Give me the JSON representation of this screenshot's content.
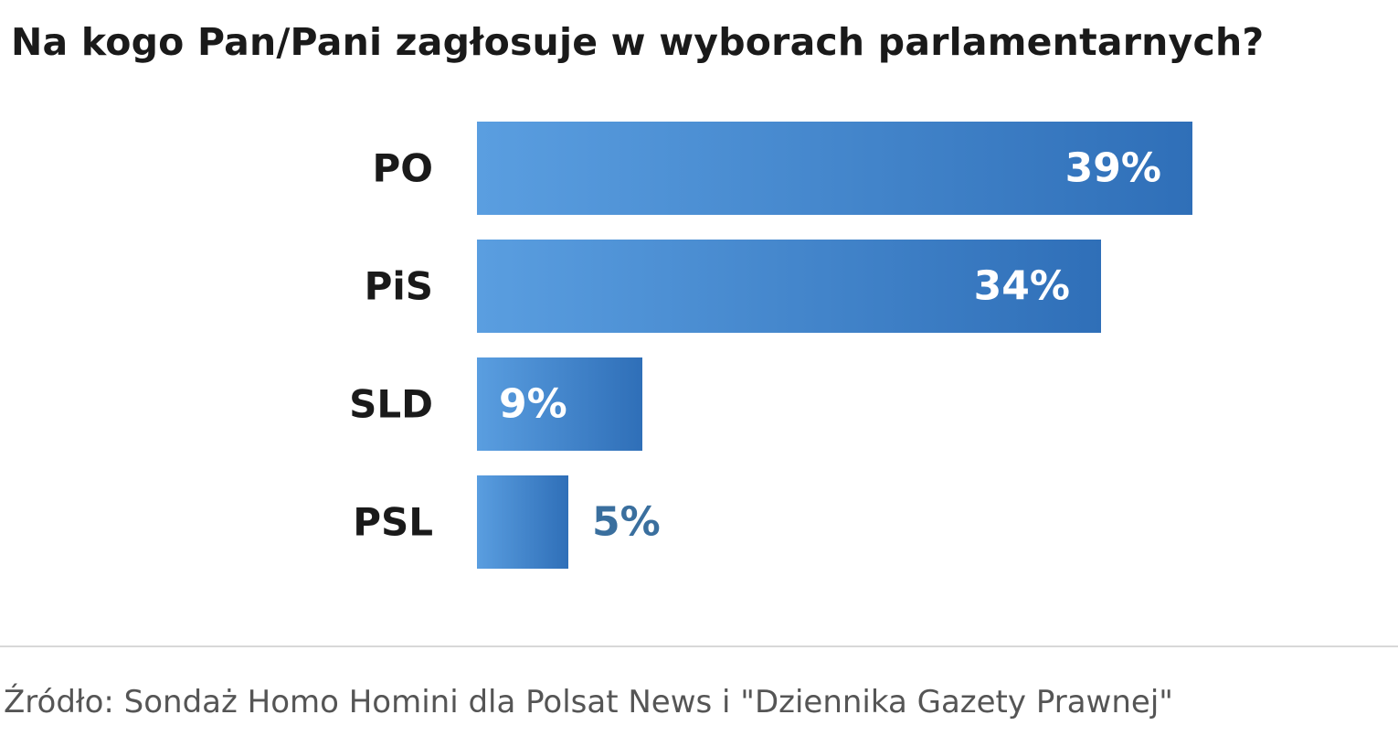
{
  "chart_data": {
    "type": "bar",
    "orientation": "horizontal",
    "title": "Na kogo Pan/Pani zagłosuje w wyborach parlamentarnych?",
    "categories": [
      "PO",
      "PiS",
      "SLD",
      "PSL"
    ],
    "values": [
      39,
      34,
      9,
      5
    ],
    "value_labels": [
      "39%",
      "34%",
      "9%",
      "5%"
    ],
    "xlabel": "",
    "ylabel": "",
    "xlim": [
      0,
      39
    ],
    "grid": false,
    "legend": "none",
    "colors": {
      "bar_light": "#5a9ee0",
      "bar_dark": "#2f6fb8",
      "label_inside": "#ffffff",
      "label_outside": "#3a6f9e",
      "category_text": "#1a1a1a"
    }
  },
  "footer": {
    "source": "Źródło: Sondaż Homo Homini dla Polsat News i \"Dziennika Gazety Prawnej\""
  }
}
